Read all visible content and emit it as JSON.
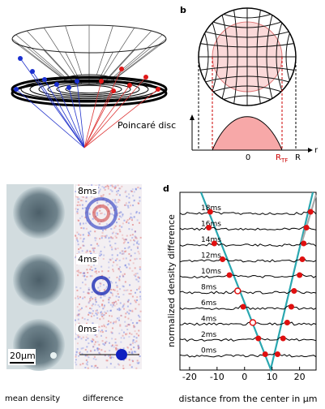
{
  "panel_b": {
    "letter": "b",
    "caption": "Poincaré disc",
    "origin": "0",
    "rtf_main": "R",
    "rtf_sub": "TF",
    "r_edge": "R",
    "axis": "r"
  },
  "panel_c": {
    "times": [
      "8ms",
      "4ms",
      "0ms"
    ],
    "scale_bar": "20μm",
    "labels": [
      "mean density",
      "difference"
    ]
  },
  "panel_d": {
    "letter": "d",
    "ylabel": "normalized density difference",
    "xlabel": "distance from the center in μm",
    "xlim": [
      -23.5,
      26
    ],
    "xticks": [
      -20,
      -10,
      0,
      10,
      20
    ],
    "traces": [
      {
        "label": "18ms",
        "left": -12.5,
        "right": 24,
        "hollow": [
          false,
          false
        ]
      },
      {
        "label": "16ms",
        "left": -13,
        "right": 22.5,
        "hollow": [
          false,
          false
        ]
      },
      {
        "label": "14ms",
        "left": -11,
        "right": 21.5,
        "hollow": [
          false,
          false
        ]
      },
      {
        "label": "12ms",
        "left": -8,
        "right": 21,
        "hollow": [
          false,
          false
        ]
      },
      {
        "label": "10ms",
        "left": -5.5,
        "right": 20,
        "hollow": [
          false,
          false
        ]
      },
      {
        "label": "8ms",
        "left": -2.5,
        "right": 18,
        "hollow": [
          true,
          false
        ]
      },
      {
        "label": "6ms",
        "left": -0.5,
        "right": 17,
        "hollow": [
          false,
          false
        ]
      },
      {
        "label": "4ms",
        "left": 3,
        "right": 15.5,
        "hollow": [
          true,
          false
        ]
      },
      {
        "label": "2ms",
        "left": 5,
        "right": 14,
        "hollow": [
          false,
          false
        ]
      },
      {
        "label": "0ms",
        "left": 7.5,
        "right": 12,
        "hollow": [
          false,
          false
        ]
      }
    ]
  }
}
